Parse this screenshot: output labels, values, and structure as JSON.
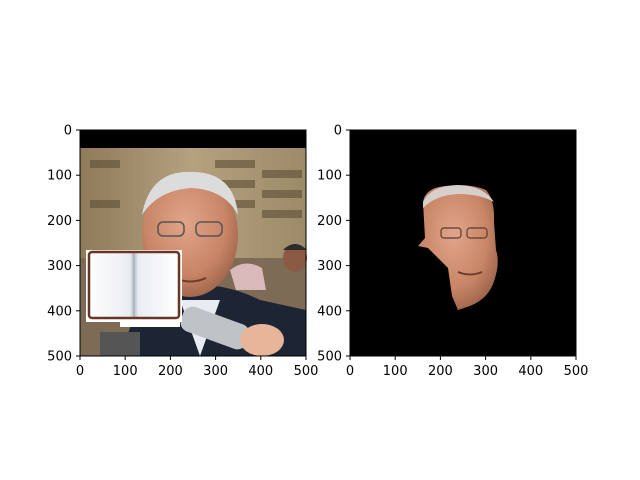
{
  "chart_data": [
    {
      "type": "image",
      "panel": "left",
      "content": "photo of a man's face with a photographic background and an open-book overlay at lower left",
      "xlim": [
        0,
        500
      ],
      "ylim": [
        500,
        0
      ],
      "xticks": [
        0,
        100,
        200,
        300,
        400,
        500
      ],
      "yticks": [
        0,
        100,
        200,
        300,
        400,
        500
      ],
      "xtick_labels": [
        "0",
        "100",
        "200",
        "300",
        "400",
        "500"
      ],
      "ytick_labels": [
        "0",
        "100",
        "200",
        "300",
        "400",
        "500"
      ],
      "title": "",
      "xlabel": "",
      "ylabel": "",
      "grid": false
    },
    {
      "type": "image",
      "panel": "right",
      "content": "segmented face on a black background",
      "xlim": [
        0,
        500
      ],
      "ylim": [
        500,
        0
      ],
      "xticks": [
        0,
        100,
        200,
        300,
        400,
        500
      ],
      "yticks": [
        0,
        100,
        200,
        300,
        400,
        500
      ],
      "xtick_labels": [
        "0",
        "100",
        "200",
        "300",
        "400",
        "500"
      ],
      "ytick_labels": [
        "0",
        "100",
        "200",
        "300",
        "400",
        "500"
      ],
      "title": "",
      "xlabel": "",
      "ylabel": "",
      "grid": false,
      "background_color": "#000000"
    }
  ]
}
